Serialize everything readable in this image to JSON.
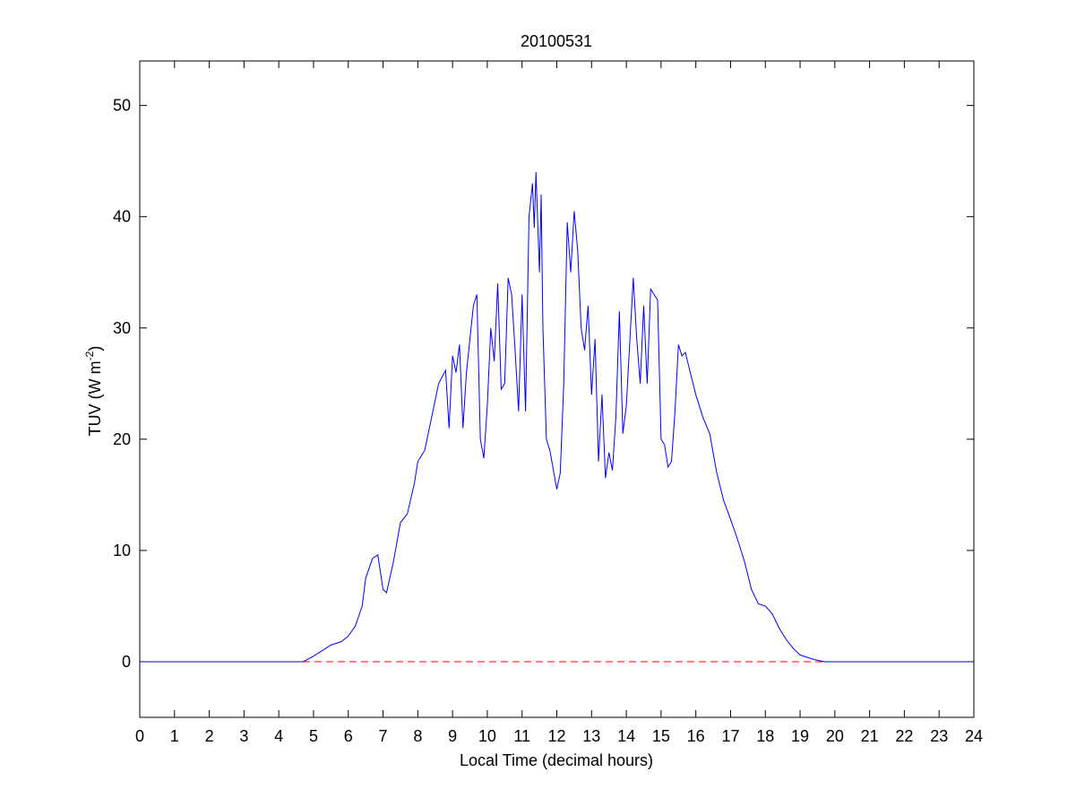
{
  "chart_data": {
    "type": "line",
    "title": "20100531",
    "xlabel": "Local Time (decimal hours)",
    "ylabel": [
      "TUV (W m",
      "-2",
      ")"
    ],
    "x": [
      0,
      4.7,
      5.0,
      5.5,
      5.8,
      6.0,
      6.2,
      6.4,
      6.5,
      6.7,
      6.85,
      7.0,
      7.1,
      7.3,
      7.5,
      7.7,
      7.9,
      8.0,
      8.2,
      8.4,
      8.6,
      8.8,
      8.9,
      9.0,
      9.1,
      9.2,
      9.3,
      9.4,
      9.6,
      9.7,
      9.8,
      9.9,
      10.0,
      10.1,
      10.2,
      10.3,
      10.4,
      10.5,
      10.6,
      10.7,
      10.8,
      10.9,
      11.0,
      11.1,
      11.2,
      11.3,
      11.35,
      11.4,
      11.5,
      11.55,
      11.6,
      11.7,
      11.8,
      12.0,
      12.1,
      12.2,
      12.3,
      12.4,
      12.5,
      12.6,
      12.7,
      12.8,
      12.9,
      13.0,
      13.1,
      13.2,
      13.3,
      13.4,
      13.5,
      13.6,
      13.7,
      13.8,
      13.9,
      14.0,
      14.2,
      14.3,
      14.4,
      14.5,
      14.6,
      14.7,
      14.9,
      15.0,
      15.1,
      15.2,
      15.3,
      15.4,
      15.5,
      15.6,
      15.7,
      15.8,
      16.0,
      16.2,
      16.4,
      16.6,
      16.8,
      17.0,
      17.2,
      17.4,
      17.6,
      17.8,
      18.0,
      18.2,
      18.4,
      18.6,
      18.8,
      19.0,
      19.4,
      19.7,
      24
    ],
    "series": [
      {
        "color": "#0000ff",
        "values": [
          0,
          0,
          0.5,
          1.5,
          1.8,
          2.3,
          3.2,
          5,
          7.5,
          9.3,
          9.6,
          6.5,
          6.2,
          9,
          12.5,
          13.3,
          16,
          18,
          19,
          22,
          25,
          26.2,
          21,
          27.5,
          26,
          28.5,
          21,
          26,
          32,
          33,
          20,
          18.3,
          23,
          30,
          27,
          34,
          24.5,
          25,
          34.5,
          33,
          28,
          22.5,
          33,
          22.5,
          40,
          43,
          39,
          44,
          35,
          42,
          30,
          20,
          19,
          15.5,
          17,
          25,
          39.5,
          35,
          40.5,
          37,
          30,
          28,
          32,
          24,
          29,
          18,
          24,
          16.5,
          18.8,
          17.2,
          22,
          31.5,
          20.5,
          23,
          34.5,
          29,
          25,
          32,
          25,
          33.5,
          32.5,
          20,
          19.5,
          17.5,
          18,
          22.5,
          28.5,
          27.5,
          27.8,
          26.5,
          24,
          22,
          20.5,
          17,
          14.5,
          12.8,
          11,
          9,
          6.5,
          5.2,
          5,
          4.3,
          3,
          2,
          1.2,
          0.6,
          0.2,
          0,
          0
        ]
      }
    ],
    "reference_line": {
      "value": 0,
      "color": "#ff0000",
      "dashed": true
    },
    "xlim": [
      0,
      24
    ],
    "xticks": [
      0,
      1,
      2,
      3,
      4,
      5,
      6,
      7,
      8,
      9,
      10,
      11,
      12,
      13,
      14,
      15,
      16,
      17,
      18,
      19,
      20,
      21,
      22,
      23,
      24
    ],
    "ylim": [
      -5,
      54
    ],
    "yticks": [
      0,
      10,
      20,
      30,
      40,
      50
    ],
    "grid": false
  }
}
